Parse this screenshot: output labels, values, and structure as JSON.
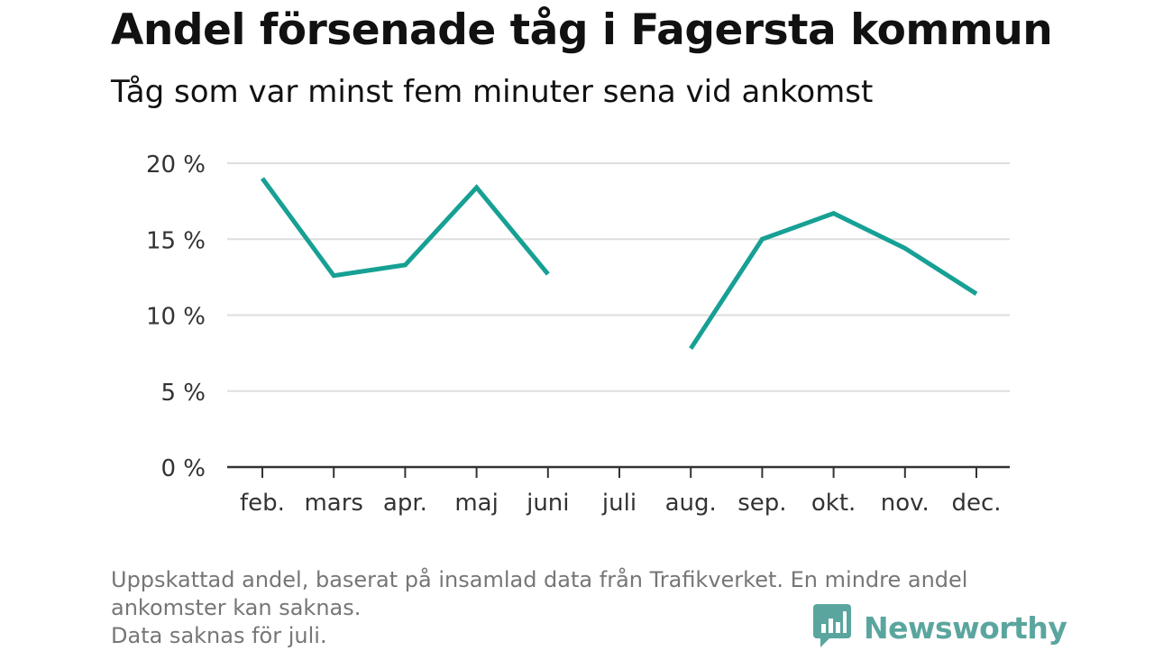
{
  "title": "Andel försenade tåg i Fagersta kommun",
  "subtitle": "Tåg som var minst fem minuter sena vid ankomst",
  "chart_data": {
    "type": "line",
    "categories": [
      "feb.",
      "mars",
      "apr.",
      "maj",
      "juni",
      "juli",
      "aug.",
      "sep.",
      "okt.",
      "nov.",
      "dec."
    ],
    "series": [
      {
        "values": [
          19.0,
          12.6,
          13.3,
          18.4,
          12.7,
          null,
          7.8,
          15.0,
          16.7,
          14.4,
          11.4
        ]
      }
    ],
    "yticks": [
      0,
      5,
      10,
      15,
      20
    ],
    "ytick_labels": [
      "0 %",
      "5 %",
      "10 %",
      "15 %",
      "20 %"
    ],
    "ylim": [
      0,
      20
    ],
    "xlabel": "",
    "ylabel": "",
    "grid": true,
    "line_color": "#17a094"
  },
  "notes": [
    "Uppskattad andel, baserat på insamlad data från Trafikverket. En mindre andel",
    "ankomster kan saknas.",
    "Data saknas för juli."
  ],
  "brand": {
    "name": "Newsworthy",
    "logo_icon": "bar-chart-speech-bubble-icon",
    "color": "#5aa69e"
  }
}
